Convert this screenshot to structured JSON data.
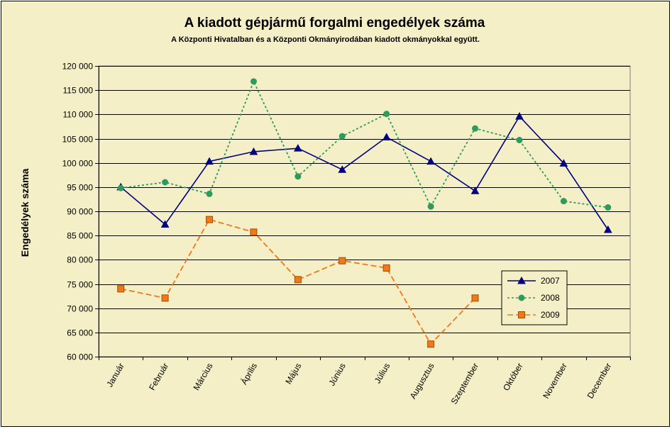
{
  "chart_data": {
    "type": "line",
    "title": "A  kiadott gépjármű forgalmi engedélyek száma",
    "subtitle": "A  Központi Hivatalban és a Központi Okmányirodában kiadott okmányokkal együtt.",
    "ylabel": "Engedélyek száma",
    "xlabel": "",
    "ylim": [
      60000,
      120000
    ],
    "ystep": 5000,
    "ytick_labels": [
      "60 000",
      "65 000",
      "70 000",
      "75 000",
      "80 000",
      "85 000",
      "90 000",
      "95 000",
      "100 000",
      "105 000",
      "110 000",
      "115 000",
      "120 000"
    ],
    "categories": [
      "Január",
      "Február",
      "Március",
      "Április",
      "Május",
      "Június",
      "Július",
      "Augusztus",
      "Szeptember",
      "Október",
      "November",
      "December"
    ],
    "grid": true,
    "legend_position": "lower-right",
    "background": "#f4efc6",
    "series": [
      {
        "name": "2007",
        "color": "#000080",
        "marker": "triangle",
        "dash": "solid",
        "values": [
          95000,
          87300,
          100300,
          102300,
          103000,
          98600,
          105300,
          100300,
          94200,
          109600,
          99900,
          86200
        ]
      },
      {
        "name": "2008",
        "color": "#2e9b5c",
        "marker": "circle",
        "dash": "dotted",
        "values": [
          94800,
          96000,
          93600,
          116800,
          97200,
          105500,
          110100,
          91000,
          107100,
          104700,
          92100,
          90800
        ]
      },
      {
        "name": "2009",
        "color": "#f07a1a",
        "marker": "square",
        "dash": "dashed",
        "values": [
          74000,
          72100,
          88300,
          85700,
          75900,
          79800,
          78300,
          62600,
          72100,
          null,
          null,
          null
        ]
      }
    ]
  }
}
